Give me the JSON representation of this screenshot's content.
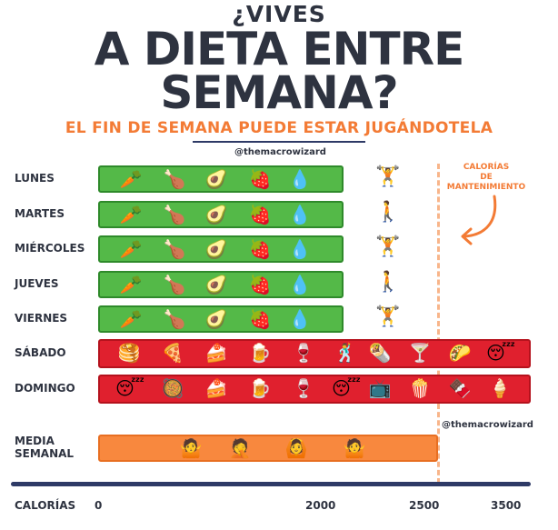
{
  "header": {
    "pre_title": "¿VIVES",
    "title_line1": "A DIETA ENTRE",
    "title_line2": "SEMANA?",
    "subtitle": "EL FIN DE SEMANA PUEDE ESTAR JUGÁNDOTELA",
    "handle": "@themacrowizard"
  },
  "maintenance": {
    "line1": "CALORÍAS",
    "line2": "DE",
    "line3": "MANTENIMIENTO"
  },
  "handle2": "@themacrowizard",
  "icons": {
    "weekday_food": [
      "🥕",
      "🍗",
      "🥑",
      "🍓",
      "💧"
    ],
    "saturday": [
      "🥞",
      "🍕",
      "🍰",
      "🍺",
      "🍷",
      "🕺",
      "🌯",
      "🍸",
      "🌮",
      "😴"
    ],
    "sunday": [
      "😴",
      "🥘",
      "🍰",
      "🍺",
      "🍷",
      "😴",
      "📺",
      "🍿",
      "🍫",
      "🍦"
    ],
    "average": [
      "🤷",
      "🤦",
      "🙆",
      "🤷"
    ],
    "workout_lift": "🏋️",
    "workout_walk": "🚶"
  },
  "chart_data": {
    "type": "bar",
    "categories": [
      "LUNES",
      "MARTES",
      "MIÉRCOLES",
      "JUEVES",
      "VIERNES",
      "SÁBADO",
      "DOMINGO"
    ],
    "average_label_line1": "MEDIA",
    "average_label_line2": "SEMANAL",
    "xlabel": "CALORÍAS",
    "tick_labels": [
      "0",
      "2000",
      "2500",
      "3500"
    ],
    "colors": {
      "weekday": "#54b948",
      "weekend": "#e0202e",
      "average": "#f8883e",
      "maintenance": "#f8b58a"
    }
  }
}
